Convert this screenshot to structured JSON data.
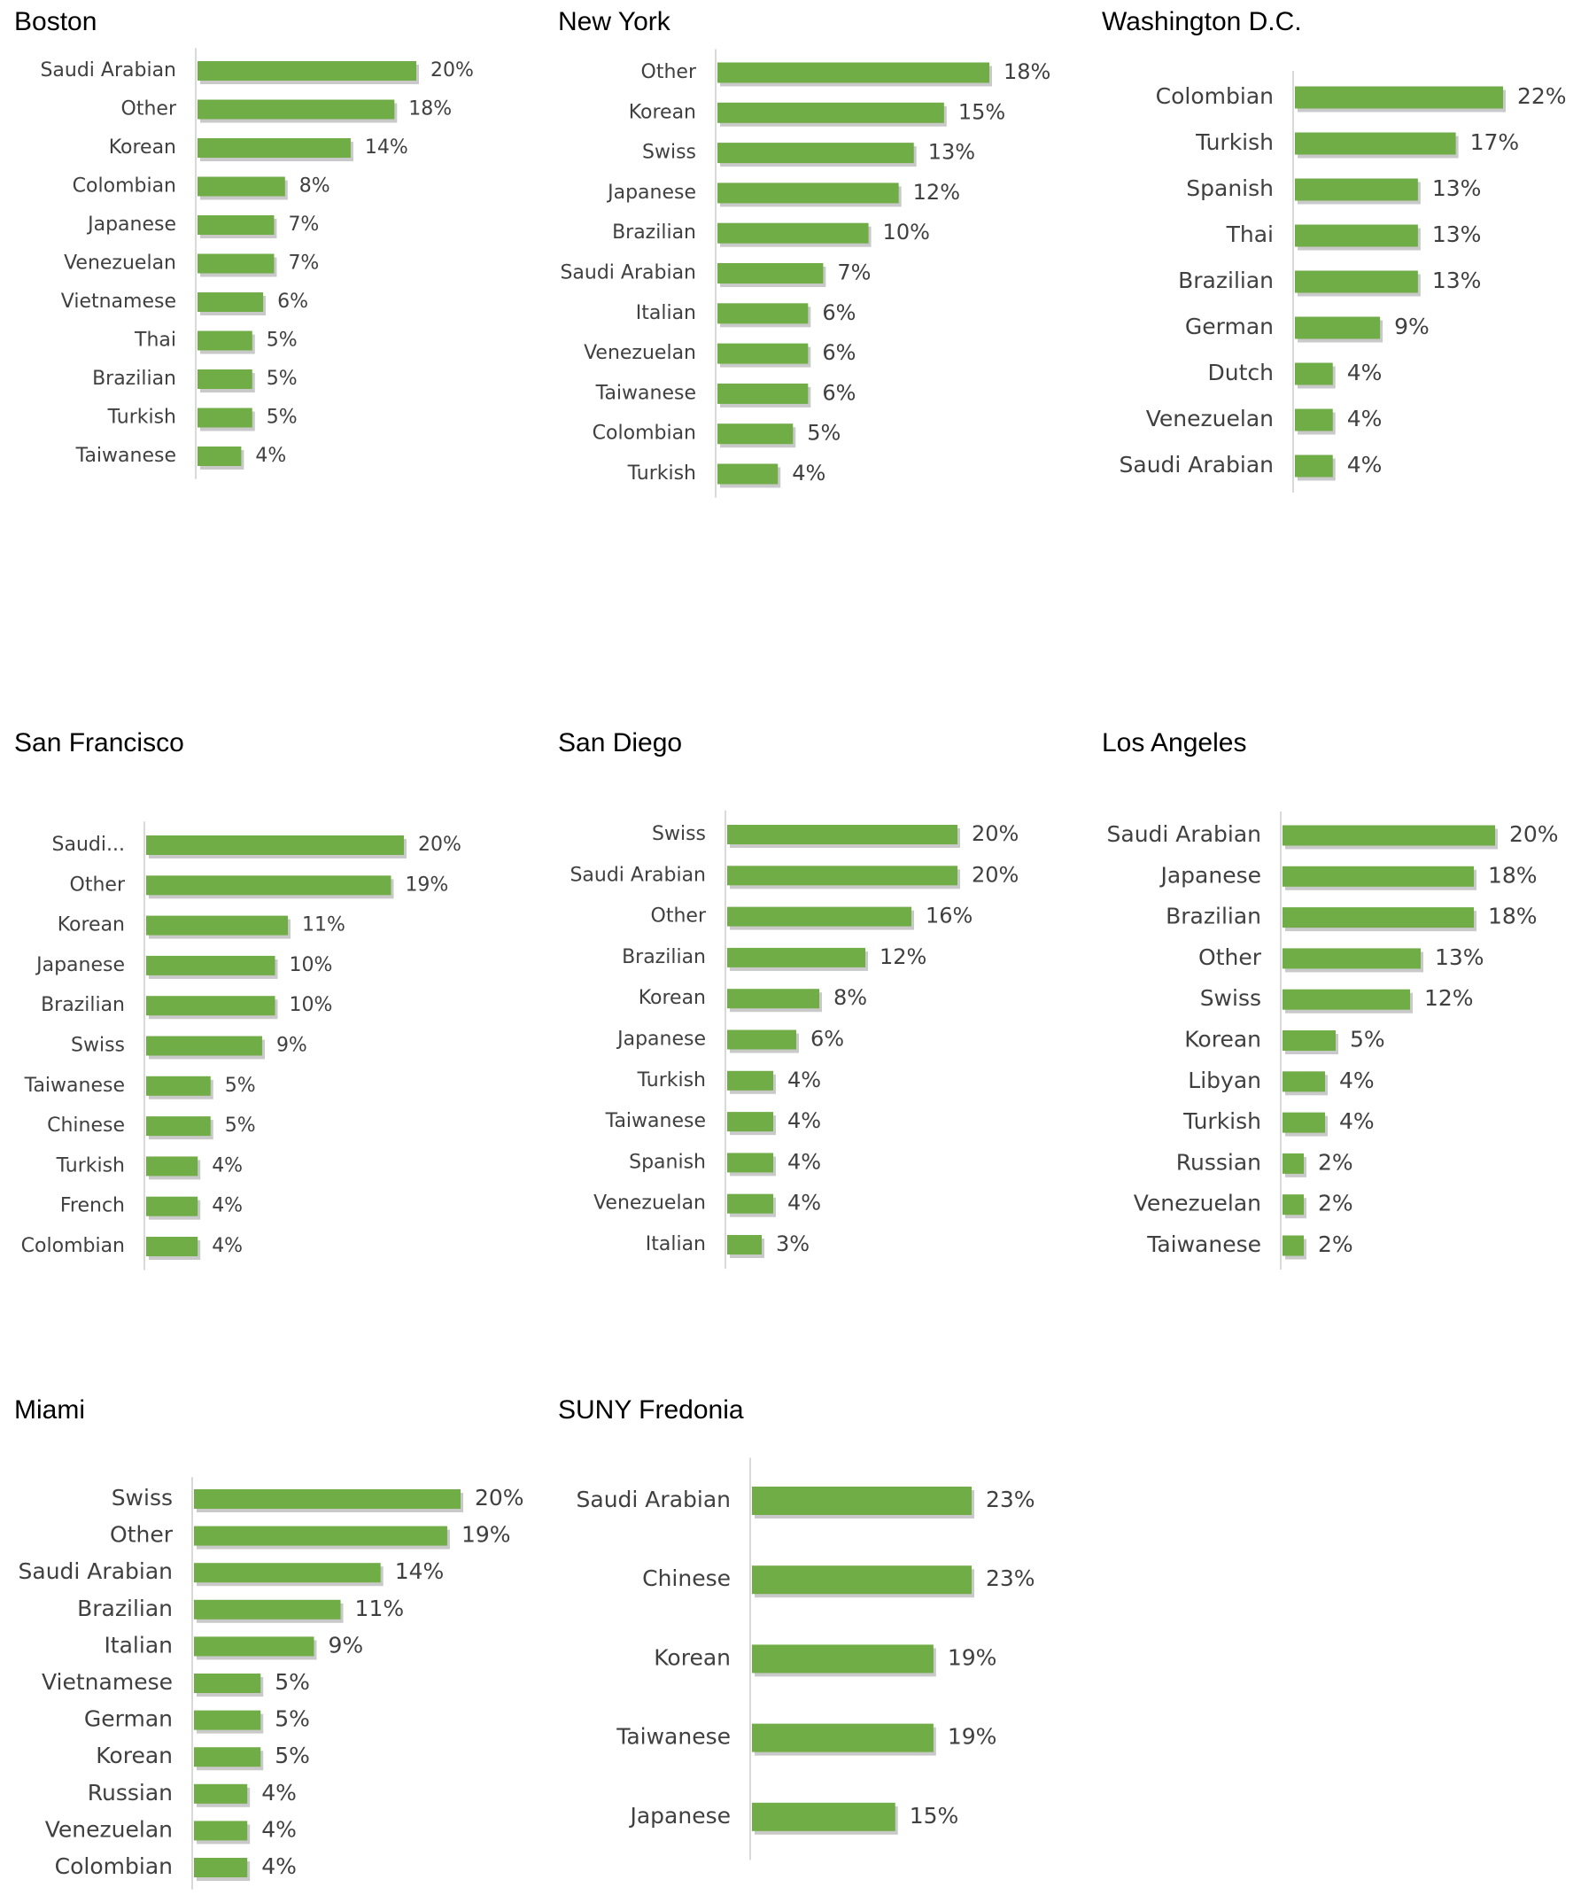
{
  "colors": {
    "bar": "#70ad47",
    "shadow": "#c9c9c9",
    "axis": "#d9d9d9",
    "label": "#404040",
    "title": "#000000"
  },
  "chart_data": [
    {
      "type": "bar",
      "orientation": "horizontal",
      "title": "Boston",
      "categories": [
        "Saudi Arabian",
        "Other",
        "Korean",
        "Colombian",
        "Japanese",
        "Venezuelan",
        "Vietnamese",
        "Thai",
        "Brazilian",
        "Turkish",
        "Taiwanese"
      ],
      "values": [
        20,
        18,
        14,
        8,
        7,
        7,
        6,
        5,
        5,
        5,
        4
      ],
      "value_labels": [
        "20%",
        "18%",
        "14%",
        "8%",
        "7%",
        "7%",
        "6%",
        "5%",
        "5%",
        "5%",
        "4%"
      ],
      "xlim": [
        0,
        20
      ]
    },
    {
      "type": "bar",
      "orientation": "horizontal",
      "title": "New York",
      "categories": [
        "Other",
        "Korean",
        "Swiss",
        "Japanese",
        "Brazilian",
        "Saudi Arabian",
        "Italian",
        "Venezuelan",
        "Taiwanese",
        "Colombian",
        "Turkish"
      ],
      "values": [
        18,
        15,
        13,
        12,
        10,
        7,
        6,
        6,
        6,
        5,
        4
      ],
      "value_labels": [
        "18%",
        "15%",
        "13%",
        "12%",
        "10%",
        "7%",
        "6%",
        "6%",
        "6%",
        "5%",
        "4%"
      ],
      "xlim": [
        0,
        18
      ]
    },
    {
      "type": "bar",
      "orientation": "horizontal",
      "title": "Washington D.C.",
      "categories": [
        "Colombian",
        "Turkish",
        "Spanish",
        "Thai",
        "Brazilian",
        "German",
        "Dutch",
        "Venezuelan",
        "Saudi Arabian"
      ],
      "values": [
        22,
        17,
        13,
        13,
        13,
        9,
        4,
        4,
        4
      ],
      "value_labels": [
        "22%",
        "17%",
        "13%",
        "13%",
        "13%",
        "9%",
        "4%",
        "4%",
        "4%"
      ],
      "xlim": [
        0,
        22
      ]
    },
    {
      "type": "bar",
      "orientation": "horizontal",
      "title": "San Francisco",
      "categories": [
        "Saudi...",
        "Other",
        "Korean",
        "Japanese",
        "Brazilian",
        "Swiss",
        "Taiwanese",
        "Chinese",
        "Turkish",
        "French",
        "Colombian"
      ],
      "values": [
        20,
        19,
        11,
        10,
        10,
        9,
        5,
        5,
        4,
        4,
        4
      ],
      "value_labels": [
        "20%",
        "19%",
        "11%",
        "10%",
        "10%",
        "9%",
        "5%",
        "5%",
        "4%",
        "4%",
        "4%"
      ],
      "xlim": [
        0,
        20
      ]
    },
    {
      "type": "bar",
      "orientation": "horizontal",
      "title": "San Diego",
      "categories": [
        "Swiss",
        "Saudi Arabian",
        "Other",
        "Brazilian",
        "Korean",
        "Japanese",
        "Turkish",
        "Taiwanese",
        "Spanish",
        "Venezuelan",
        "Italian"
      ],
      "values": [
        20,
        20,
        16,
        12,
        8,
        6,
        4,
        4,
        4,
        4,
        3
      ],
      "value_labels": [
        "20%",
        "20%",
        "16%",
        "12%",
        "8%",
        "6%",
        "4%",
        "4%",
        "4%",
        "4%",
        "3%"
      ],
      "xlim": [
        0,
        20
      ]
    },
    {
      "type": "bar",
      "orientation": "horizontal",
      "title": "Los Angeles",
      "categories": [
        "Saudi Arabian",
        "Japanese",
        "Brazilian",
        "Other",
        "Swiss",
        "Korean",
        "Libyan",
        "Turkish",
        "Russian",
        "Venezuelan",
        "Taiwanese"
      ],
      "values": [
        20,
        18,
        18,
        13,
        12,
        5,
        4,
        4,
        2,
        2,
        2
      ],
      "value_labels": [
        "20%",
        "18%",
        "18%",
        "13%",
        "12%",
        "5%",
        "4%",
        "4%",
        "2%",
        "2%",
        "2%"
      ],
      "xlim": [
        0,
        20
      ]
    },
    {
      "type": "bar",
      "orientation": "horizontal",
      "title": "Miami",
      "categories": [
        "Swiss",
        "Other",
        "Saudi Arabian",
        "Brazilian",
        "Italian",
        "Vietnamese",
        "German",
        "Korean",
        "Russian",
        "Venezuelan",
        "Colombian"
      ],
      "values": [
        20,
        19,
        14,
        11,
        9,
        5,
        5,
        5,
        4,
        4,
        4
      ],
      "value_labels": [
        "20%",
        "19%",
        "14%",
        "11%",
        "9%",
        "5%",
        "5%",
        "5%",
        "4%",
        "4%",
        "4%"
      ],
      "xlim": [
        0,
        20
      ]
    },
    {
      "type": "bar",
      "orientation": "horizontal",
      "title": "SUNY Fredonia",
      "categories": [
        "Saudi Arabian",
        "Chinese",
        "Korean",
        "Taiwanese",
        "Japanese"
      ],
      "values": [
        23,
        23,
        19,
        19,
        15
      ],
      "value_labels": [
        "23%",
        "23%",
        "19%",
        "19%",
        "15%"
      ],
      "xlim": [
        0,
        23
      ]
    }
  ]
}
